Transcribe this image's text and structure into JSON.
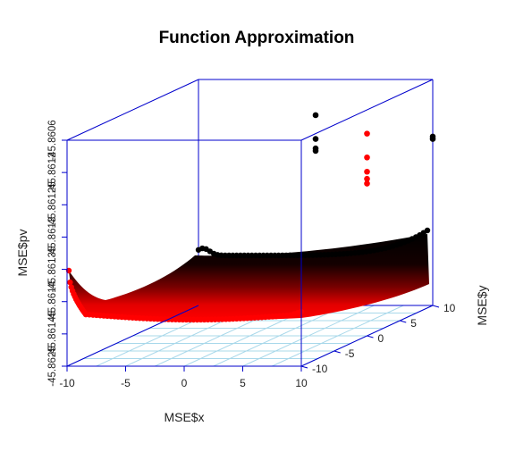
{
  "chart_data": {
    "type": "scatter3d",
    "title": "Function Approximation",
    "xlabel": "MSE$x",
    "ylabel": "MSE$y",
    "zlabel": "MSE$pv",
    "x_ticks": [
      "-10",
      "-5",
      "0",
      "5",
      "10"
    ],
    "y_ticks": [
      "-10",
      "-5",
      "0",
      "5",
      "10"
    ],
    "z_ticks": [
      "-45.8625",
      "-45.86145",
      "-45.8614",
      "-45.86135",
      "-45.8613",
      "-45.86125",
      "-45.8612",
      "-45.8606"
    ],
    "xlim": [
      -10,
      10
    ],
    "ylim": [
      -10,
      10
    ],
    "zlim": [
      -45.8625,
      -45.8606
    ],
    "grid": "xy-plane",
    "series": [
      {
        "color": "#000000",
        "surface": "row-mirrored",
        "spikes": [
          {
            "x": 0,
            "y": 10,
            "z": [
              -45.8609,
              -45.8611,
              -45.86118,
              -45.8612
            ]
          },
          {
            "x": 10,
            "y": 10,
            "z": [
              -45.86108,
              -45.8611
            ]
          }
        ]
      },
      {
        "color": "#ff0000",
        "surface": "row-front",
        "spikes": [
          {
            "x": 10,
            "y": 0,
            "z": [
              -45.8608,
              -45.861,
              -45.86112,
              -45.86118,
              -45.86122
            ]
          }
        ]
      }
    ]
  }
}
